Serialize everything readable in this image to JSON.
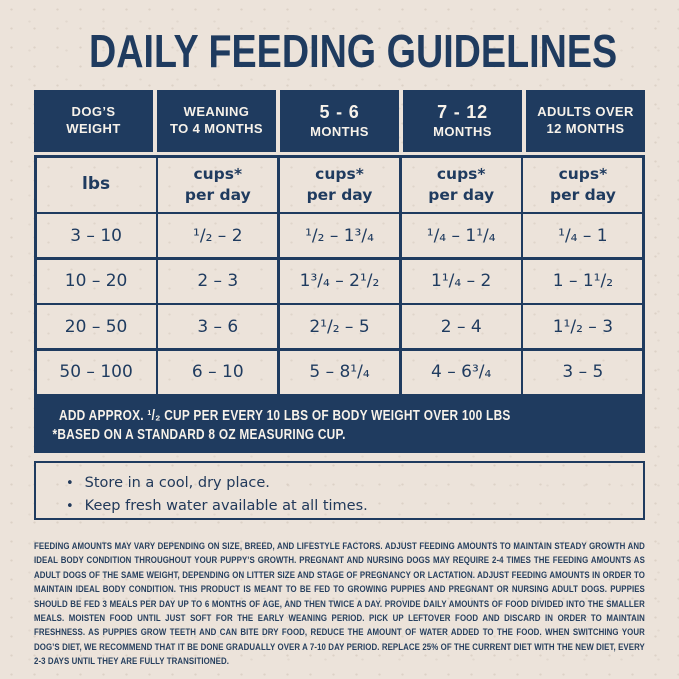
{
  "colors": {
    "navy": "#1f3b5f",
    "cream": "#ece3da",
    "off_white": "#f7f2ea"
  },
  "title": "DAILY FEEDING GUIDELINES",
  "table": {
    "columns": [
      {
        "line1": "DOG’S",
        "line2": "WEIGHT"
      },
      {
        "line1": "WEANING",
        "line2": "TO 4 MONTHS"
      },
      {
        "line1": "5 - 6",
        "line2": "MONTHS"
      },
      {
        "line1": "7 - 12",
        "line2": "MONTHS"
      },
      {
        "line1": "ADULTS OVER",
        "line2": "12 MONTHS"
      }
    ],
    "units_row": {
      "weight_unit": "lbs",
      "cups_line1": "cups*",
      "cups_line2": "per day"
    },
    "rows": [
      {
        "weight": "3 – 10",
        "values": [
          "¹/₂ – 2",
          "¹/₂ – 1³/₄",
          "¹/₄ – 1¹/₄",
          "¹/₄ – 1"
        ]
      },
      {
        "weight": "10 – 20",
        "values": [
          "2 – 3",
          "1³/₄ – 2¹/₂",
          "1¹/₄ – 2",
          "1 – 1¹/₂"
        ]
      },
      {
        "weight": "20 – 50",
        "values": [
          "3 – 6",
          "2¹/₂ – 5",
          "2 – 4",
          "1¹/₂ – 3"
        ]
      },
      {
        "weight": "50 – 100",
        "values": [
          "6 – 10",
          "5 – 8¹/₄",
          "4 – 6³/₄",
          "3 – 5"
        ]
      }
    ],
    "footnote": {
      "line1": "ADD APPROX. ¹/₂ CUP PER EVERY 10 LBS OF BODY WEIGHT OVER 100 LBS",
      "line2": "*BASED ON A STANDARD 8 OZ MEASURING CUP."
    }
  },
  "tips": {
    "bullet": "•",
    "items": [
      "Store in a cool, dry place.",
      "Keep fresh water available at all times."
    ]
  },
  "fine_print": "FEEDING AMOUNTS MAY VARY DEPENDING ON SIZE, BREED, AND LIFESTYLE FACTORS. ADJUST FEEDING AMOUNTS TO MAINTAIN STEADY GROWTH AND IDEAL BODY CONDITION THROUGHOUT YOUR PUPPY’S GROWTH. PREGNANT AND NURSING DOGS MAY REQUIRE 2-4 TIMES THE FEEDING AMOUNTS AS ADULT DOGS OF THE SAME WEIGHT, DEPENDING ON LITTER SIZE AND STAGE OF PREGNANCY OR LACTATION. ADJUST FEEDING AMOUNTS IN ORDER TO MAINTAIN IDEAL BODY CONDITION. THIS PRODUCT IS MEANT TO BE FED TO GROWING PUPPIES AND PREGNANT OR NURSING ADULT DOGS. PUPPIES SHOULD BE FED 3 MEALS PER DAY UP TO 6 MONTHS OF AGE, AND THEN TWICE A DAY. PROVIDE DAILY AMOUNTS OF FOOD DIVIDED INTO THE SMALLER MEALS. MOISTEN FOOD UNTIL JUST SOFT FOR THE EARLY WEANING PERIOD. PICK UP LEFTOVER FOOD AND DISCARD IN ORDER TO MAINTAIN FRESHNESS. AS PUPPIES GROW TEETH AND CAN BITE DRY FOOD, REDUCE THE AMOUNT OF WATER ADDED TO THE FOOD. WHEN SWITCHING YOUR DOG’S DIET, WE RECOMMEND THAT IT BE DONE GRADUALLY OVER A 7-10 DAY PERIOD. REPLACE 25% OF THE CURRENT DIET WITH THE NEW DIET, EVERY 2-3 DAYS UNTIL THEY ARE FULLY TRANSITIONED."
}
